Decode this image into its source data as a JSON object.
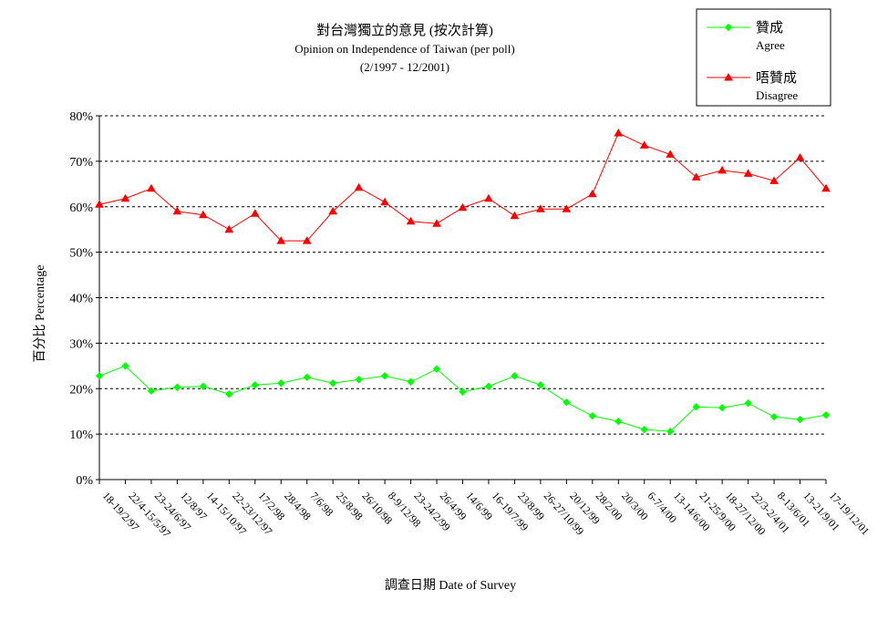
{
  "chart_data": {
    "type": "line",
    "title": "對台灣獨立的意見 (按次計算)",
    "subtitle": "Opinion on Independence of Taiwan (per poll)",
    "period": "(2/1997 - 12/2001)",
    "ylabel": "百分比 Percentage",
    "xlabel": "調查日期 Date of Survey",
    "ylim": [
      0,
      80
    ],
    "yticks": [
      "0%",
      "10%",
      "20%",
      "30%",
      "40%",
      "50%",
      "60%",
      "70%",
      "80%"
    ],
    "grid": true,
    "legend_position": "top-right",
    "categories": [
      "18-19/2/97",
      "22/4-15/5/97",
      "23-24/6/97",
      "12/8/97",
      "14-15/10/97",
      "22-23/12/97",
      "17/2/98",
      "28/4/98",
      "7/6/98",
      "25/8/98",
      "26/10/98",
      "8-9/12/98",
      "23-24/2/99",
      "26/4/99",
      "14/6/99",
      "16-19/7/99",
      "23/8/99",
      "26-27/10/99",
      "20/12/99",
      "28/2/00",
      "20/3/00",
      "6-7/4/00",
      "13-14/6/00",
      "21-25/9/00",
      "18-27/12/00",
      "22/3-2/4/01",
      "8-13/6/01",
      "13-21/9/01",
      "17-19/12/01"
    ],
    "series": [
      {
        "name": "贊成",
        "name_en": "Agree",
        "color": "#00ff00",
        "marker": "diamond",
        "values": [
          22.8,
          25.0,
          19.5,
          20.3,
          20.5,
          18.8,
          20.8,
          21.2,
          22.5,
          21.2,
          22.0,
          22.8,
          21.5,
          24.3,
          19.3,
          20.5,
          22.8,
          20.8,
          17.0,
          14.0,
          12.8,
          11.0,
          10.6,
          16.0,
          15.8,
          16.8,
          13.8,
          13.2,
          14.2
        ]
      },
      {
        "name": "唔贊成",
        "name_en": "Disagree",
        "color": "#ff0000",
        "marker": "triangle",
        "values": [
          60.5,
          61.8,
          64.0,
          59.0,
          58.2,
          55.0,
          58.5,
          52.5,
          52.5,
          59.0,
          64.2,
          61.0,
          56.8,
          56.3,
          59.8,
          61.8,
          58.0,
          59.5,
          59.5,
          62.8,
          76.2,
          73.5,
          71.5,
          66.5,
          68.0,
          67.3,
          65.7,
          70.8,
          64.0
        ]
      }
    ]
  }
}
